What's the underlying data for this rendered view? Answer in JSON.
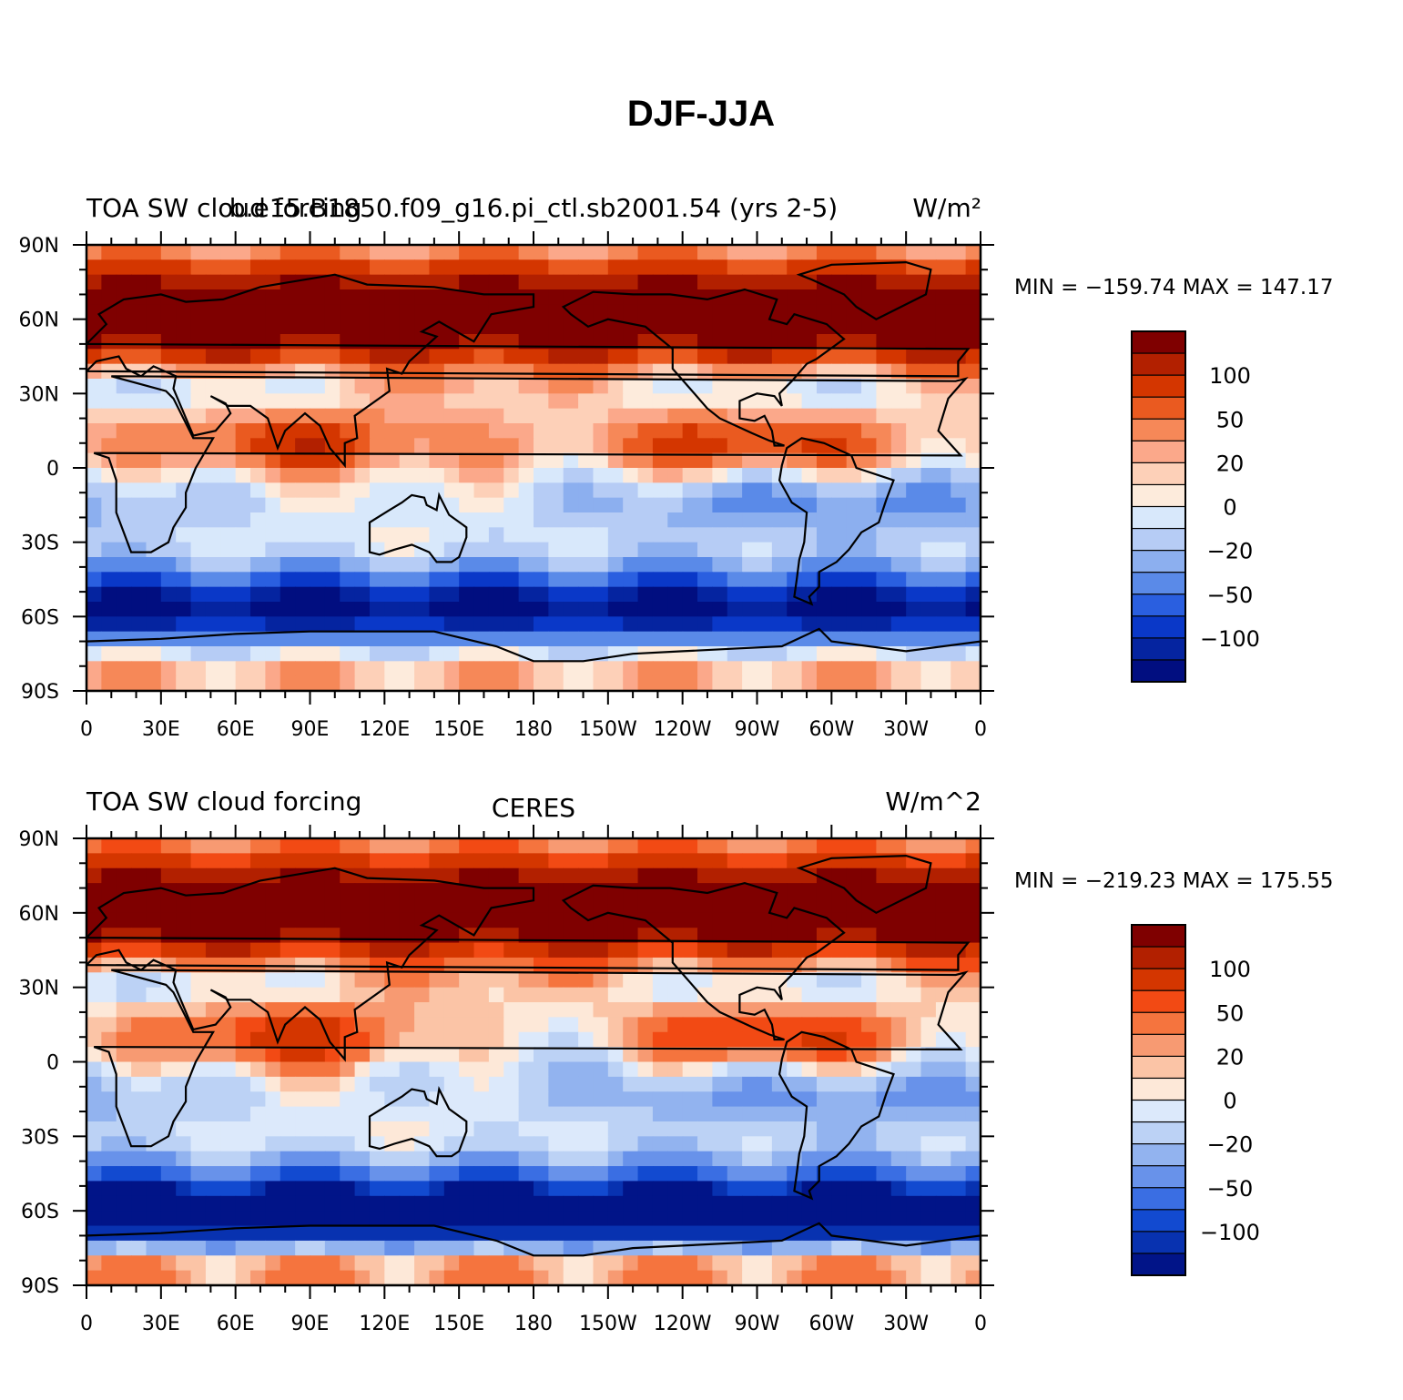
{
  "figure": {
    "title": "DJF-JJA"
  },
  "panels": [
    {
      "id": "model",
      "left_title": "TOA SW cloud forcing",
      "center_title": "b.e15.B1850.f09_g16.pi_ctl.sb2001.54 (yrs 2-5)",
      "right_title": "W/m²",
      "min_max": "MIN = −159.74  MAX = 147.17",
      "min": -159.74,
      "max": 147.17
    },
    {
      "id": "ceres",
      "left_title": "TOA SW cloud forcing",
      "center_title": "CERES",
      "right_title": "W/m^2",
      "min_max": "MIN = −219.23  MAX = 175.55",
      "min": -219.23,
      "max": 175.55
    }
  ],
  "axes": {
    "lat_labels": [
      "90N",
      "60N",
      "30N",
      "0",
      "30S",
      "60S",
      "90S"
    ],
    "lon_labels": [
      "0",
      "30E",
      "60E",
      "90E",
      "120E",
      "150E",
      "180",
      "150W",
      "120W",
      "90W",
      "60W",
      "30W",
      "0"
    ]
  },
  "colorbar": {
    "labels": [
      "100",
      "50",
      "20",
      "0",
      "−20",
      "−50",
      "−100"
    ],
    "colors_model": [
      "#7f0000",
      "#b22000",
      "#d43600",
      "#ea5a20",
      "#f68858",
      "#fba88a",
      "#fdd0b8",
      "#fdebdc",
      "#d8e8fb",
      "#b6ccf5",
      "#8cafef",
      "#5a8ae8",
      "#2a5fe0",
      "#0a38c8",
      "#0524a0",
      "#010e80"
    ],
    "colors_obs": [
      "#7f0000",
      "#b22000",
      "#d43600",
      "#f24a14",
      "#f5743e",
      "#f79a72",
      "#fbc4a6",
      "#fde8d8",
      "#dce9fb",
      "#bcd2f5",
      "#92b3ef",
      "#6892ea",
      "#3a6ee3",
      "#124ad0",
      "#0832b0",
      "#011488"
    ]
  },
  "chart_data": [
    {
      "type": "heatmap",
      "title": "b.e15.B1850.f09_g16.pi_ctl.sb2001.54 (yrs 2-5)",
      "left_label": "TOA SW cloud forcing",
      "units": "W/m²",
      "xlim": [
        0,
        360
      ],
      "ylim": [
        -90,
        90
      ],
      "x_ticks": [
        "0",
        "30E",
        "60E",
        "90E",
        "120E",
        "150E",
        "180",
        "150W",
        "120W",
        "90W",
        "60W",
        "30W",
        "0"
      ],
      "y_ticks": [
        "90N",
        "60N",
        "30N",
        "0",
        "30S",
        "60S",
        "90S"
      ],
      "contour_levels": [
        -130,
        -115,
        -100,
        -85,
        -70,
        -50,
        -35,
        -20,
        -10,
        0,
        10,
        20,
        35,
        50,
        70,
        85,
        100,
        115,
        130
      ],
      "colorbar_labels": [
        "100",
        "50",
        "20",
        "0",
        "−20",
        "−50",
        "−100"
      ],
      "min": -159.74,
      "max": 147.17
    },
    {
      "type": "heatmap",
      "title": "CERES",
      "left_label": "TOA SW cloud forcing",
      "units": "W/m^2",
      "xlim": [
        0,
        360
      ],
      "ylim": [
        -90,
        90
      ],
      "x_ticks": [
        "0",
        "30E",
        "60E",
        "90E",
        "120E",
        "150E",
        "180",
        "150W",
        "120W",
        "90W",
        "60W",
        "30W",
        "0"
      ],
      "y_ticks": [
        "90N",
        "60N",
        "30N",
        "0",
        "30S",
        "60S",
        "90S"
      ],
      "contour_levels": [
        -130,
        -115,
        -100,
        -85,
        -70,
        -50,
        -35,
        -20,
        -10,
        0,
        10,
        20,
        35,
        50,
        70,
        85,
        100,
        115,
        130
      ],
      "colorbar_labels": [
        "100",
        "50",
        "20",
        "0",
        "−20",
        "−50",
        "−100"
      ],
      "min": -219.23,
      "max": 175.55
    }
  ]
}
